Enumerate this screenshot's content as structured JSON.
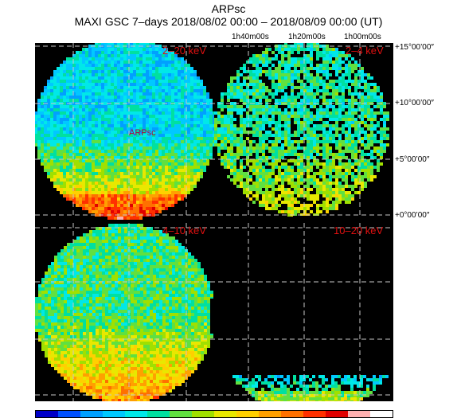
{
  "header": {
    "title": "ARPsc",
    "subtitle": "MAXI GSC 7–days 2018/08/02 00:00 – 2018/08/09 00:00 (UT)"
  },
  "axes": {
    "ra_ticks": [
      "1h40m00s",
      "1h20m00s",
      "1h00m00s"
    ],
    "dec_ticks": [
      "+15°00’00″",
      "+10°00’00″",
      "+5°00’00″",
      "+0°00’00″"
    ]
  },
  "panels": [
    {
      "band": "2–20 keV",
      "source_label": "ARPsc"
    },
    {
      "band": "2–4 keV"
    },
    {
      "band": "4–10 keV"
    },
    {
      "band": "10–20 keV"
    }
  ],
  "colorbar": {
    "colors": [
      "#0000c8",
      "#0050ff",
      "#00a0ff",
      "#00c8ff",
      "#00e8e8",
      "#00e0a0",
      "#60e040",
      "#a0e000",
      "#e8e800",
      "#ffd000",
      "#ffa000",
      "#ff7000",
      "#ff3000",
      "#e00000",
      "#ffb0b0",
      "#ffffff"
    ]
  },
  "maps": {
    "background": "#000000",
    "gridline": "#c8c8c8",
    "colors": [
      "#0000c8",
      "#0050ff",
      "#00a0ff",
      "#00c8ff",
      "#00e8e8",
      "#00e0a0",
      "#60e040",
      "#a0e000",
      "#e8e800",
      "#ffd000",
      "#ffa000",
      "#ff7000",
      "#ff3000",
      "#e00000",
      "#ffb0b0",
      "#ffffff"
    ]
  }
}
